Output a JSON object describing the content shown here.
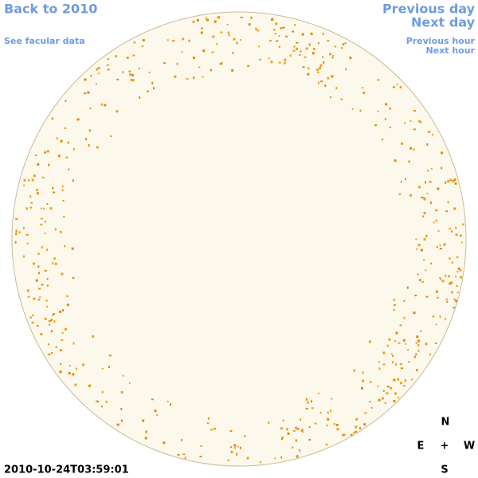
{
  "links": {
    "back": "Back to 2010",
    "facular": "See facular data",
    "previous_day": "Previous day",
    "next_day": "Next day",
    "previous_hour": "Previous hour",
    "next_hour": "Next hour"
  },
  "timestamp": "2010-10-24T03:59:01",
  "compass": {
    "north": "N",
    "east": "E",
    "center": "+",
    "west": "W",
    "south": "S"
  }
}
